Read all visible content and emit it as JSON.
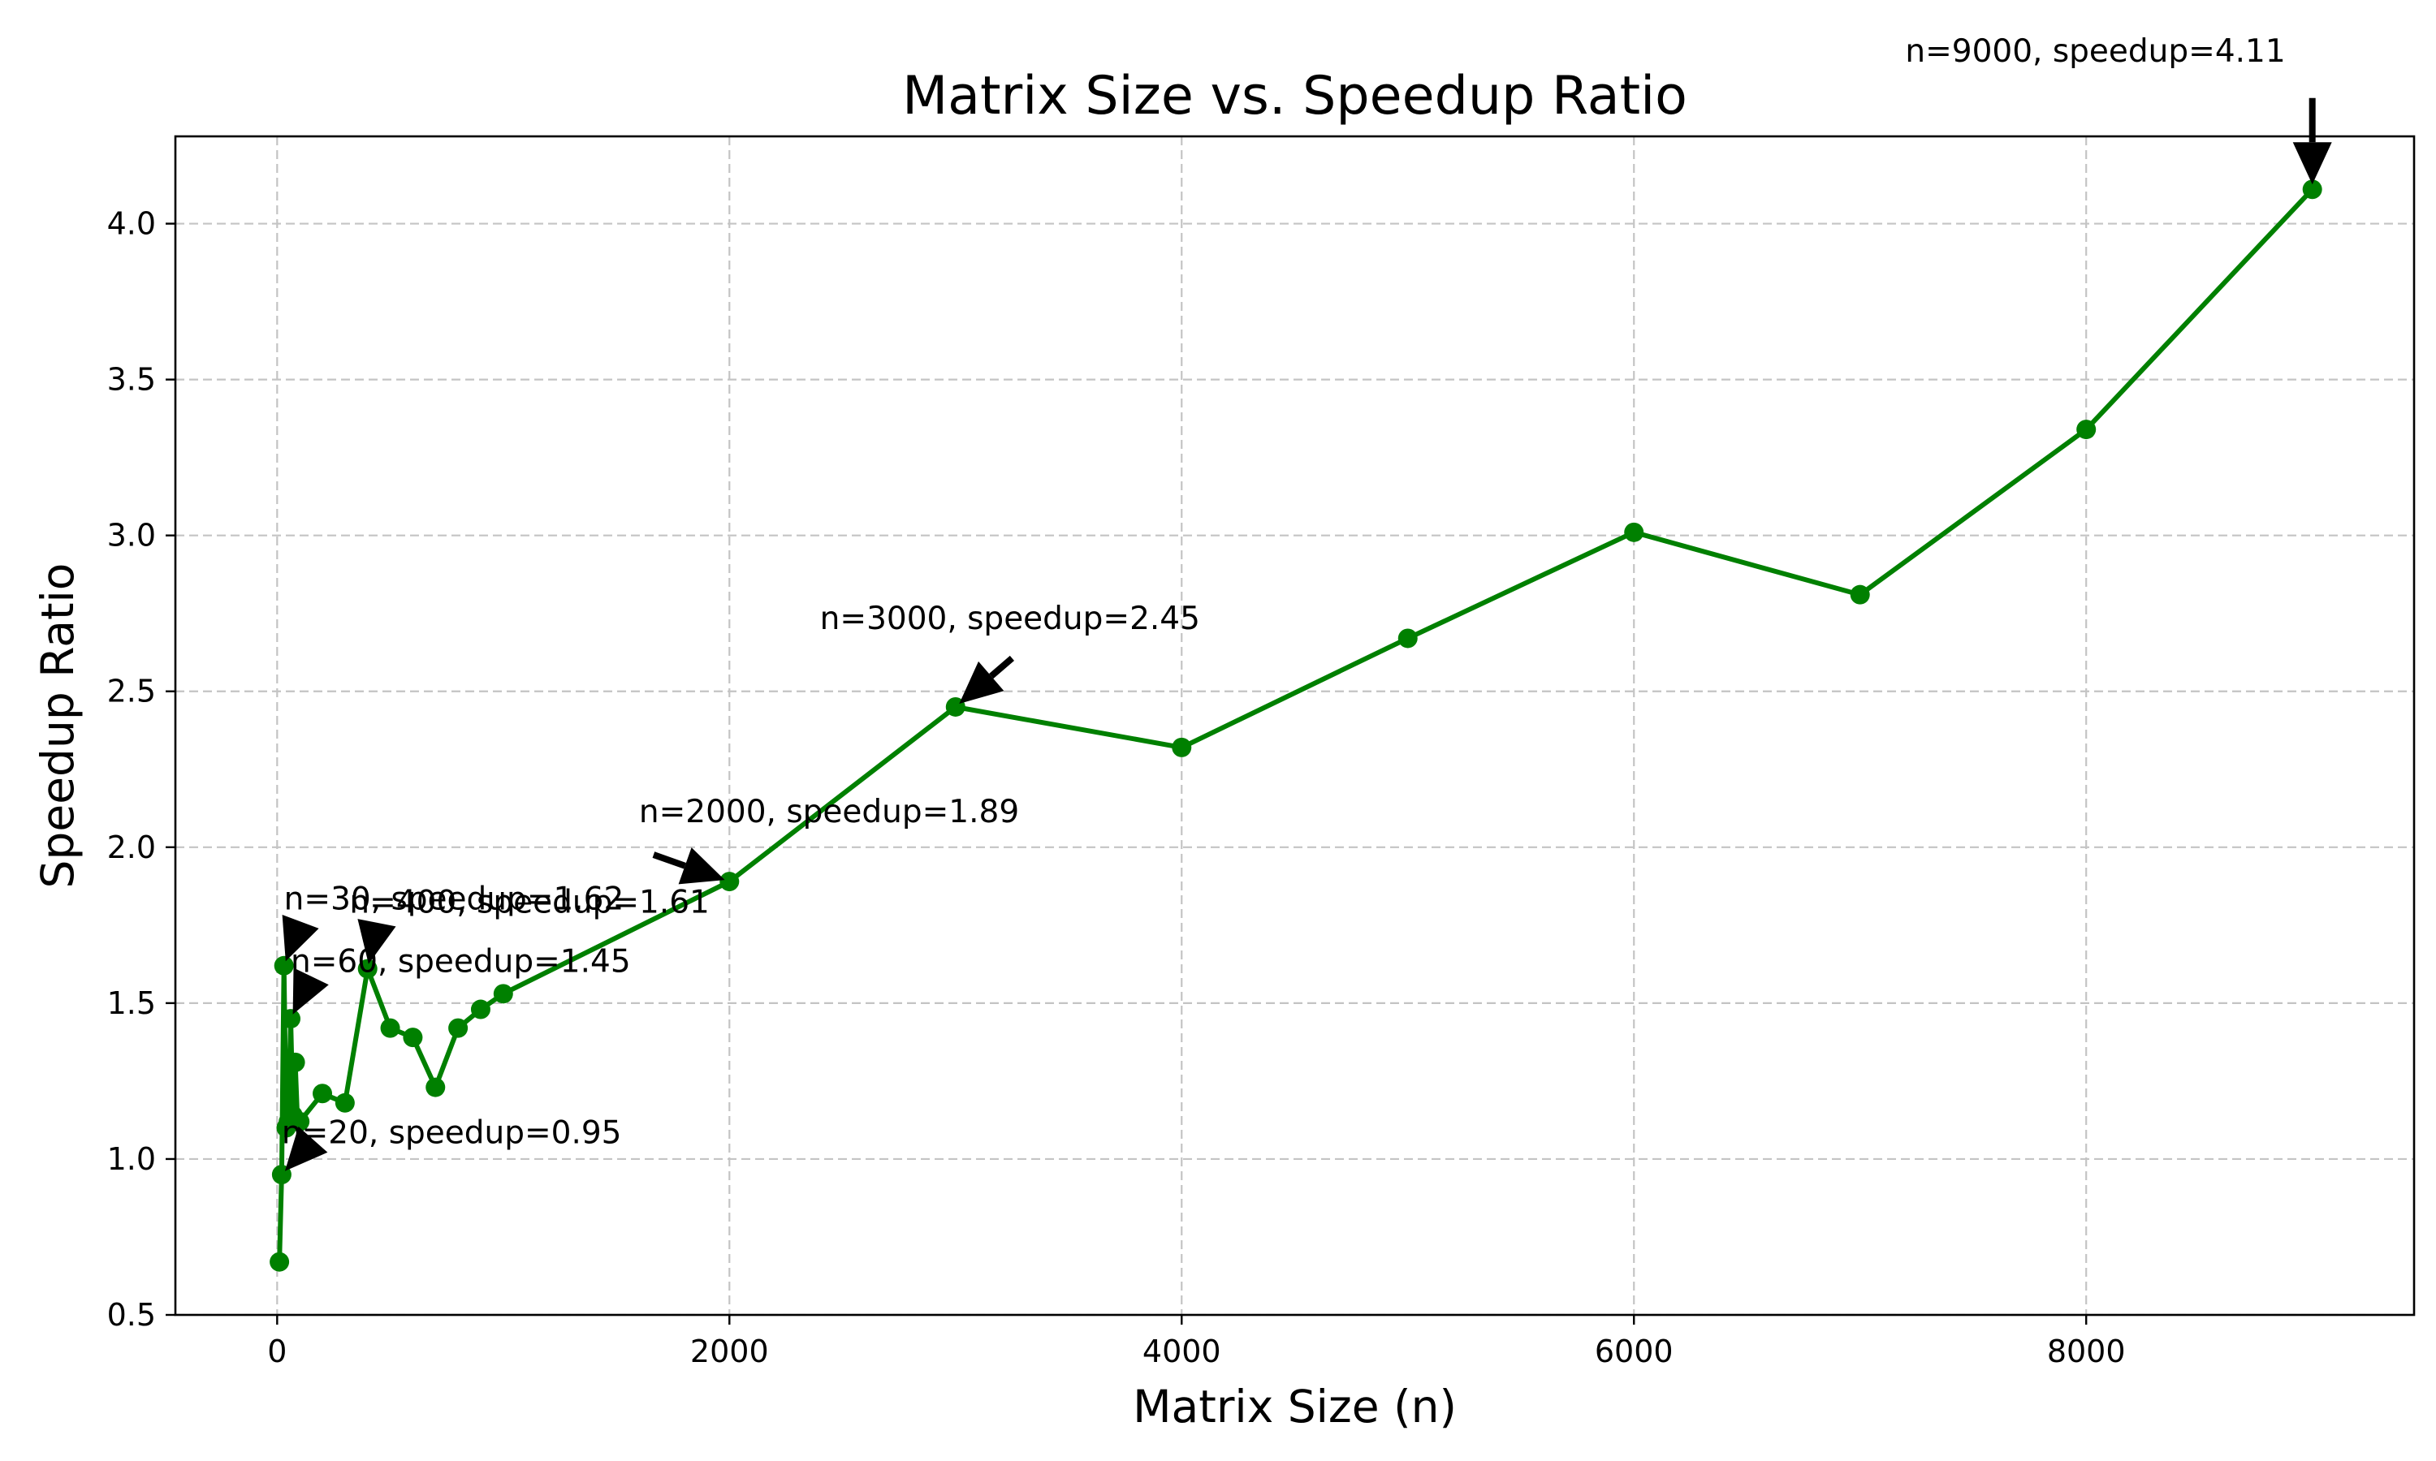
{
  "chart_data": {
    "type": "line",
    "title": "Matrix Size vs. Speedup Ratio",
    "xlabel": "Matrix Size (n)",
    "ylabel": "Speedup Ratio",
    "xlim": [
      -450,
      9450
    ],
    "ylim": [
      0.5,
      4.28
    ],
    "xticks": [
      0,
      2000,
      4000,
      6000,
      8000
    ],
    "xtick_labels": [
      "0",
      "2000",
      "4000",
      "6000",
      "8000"
    ],
    "yticks": [
      0.5,
      1.0,
      1.5,
      2.0,
      2.5,
      3.0,
      3.5,
      4.0
    ],
    "ytick_labels": [
      "0.5",
      "1.0",
      "1.5",
      "2.0",
      "2.5",
      "3.0",
      "3.5",
      "4.0"
    ],
    "grid": true,
    "series_color": "#008000",
    "series": [
      {
        "x": [
          10,
          20,
          30,
          40,
          50,
          60,
          70,
          80,
          90,
          100,
          200,
          300,
          400,
          500,
          600,
          700,
          800,
          900,
          1000,
          2000,
          3000,
          4000,
          5000,
          6000,
          7000,
          8000,
          9000
        ],
        "y": [
          0.67,
          0.95,
          1.62,
          1.1,
          1.12,
          1.45,
          1.14,
          1.31,
          1.12,
          1.12,
          1.21,
          1.18,
          1.61,
          1.42,
          1.39,
          1.23,
          1.42,
          1.48,
          1.53,
          1.89,
          2.45,
          2.32,
          2.67,
          3.01,
          2.81,
          3.34,
          4.11
        ]
      }
    ],
    "annotations": [
      {
        "text": "n=20, speedup=0.95",
        "x": 20,
        "y": 0.95,
        "text_x": 20,
        "text_y": 1.05
      },
      {
        "text": "n=30, speedup=1.62",
        "x": 30,
        "y": 1.62,
        "text_x": 30,
        "text_y": 1.8
      },
      {
        "text": "n=60, speedup=1.45",
        "x": 60,
        "y": 1.45,
        "text_x": 60,
        "text_y": 1.6
      },
      {
        "text": "n=400, speedup=1.61",
        "x": 400,
        "y": 1.61,
        "text_x": 320,
        "text_y": 1.79
      },
      {
        "text": "n=2000, speedup=1.89",
        "x": 2000,
        "y": 1.89,
        "text_x": 1600,
        "text_y": 2.08
      },
      {
        "text": "n=3000, speedup=2.45",
        "x": 3000,
        "y": 2.45,
        "text_x": 2400,
        "text_y": 2.7
      },
      {
        "text": "n=9000, speedup=4.11",
        "x": 9000,
        "y": 4.11,
        "text_x": 7200,
        "text_y": 4.52
      }
    ]
  }
}
